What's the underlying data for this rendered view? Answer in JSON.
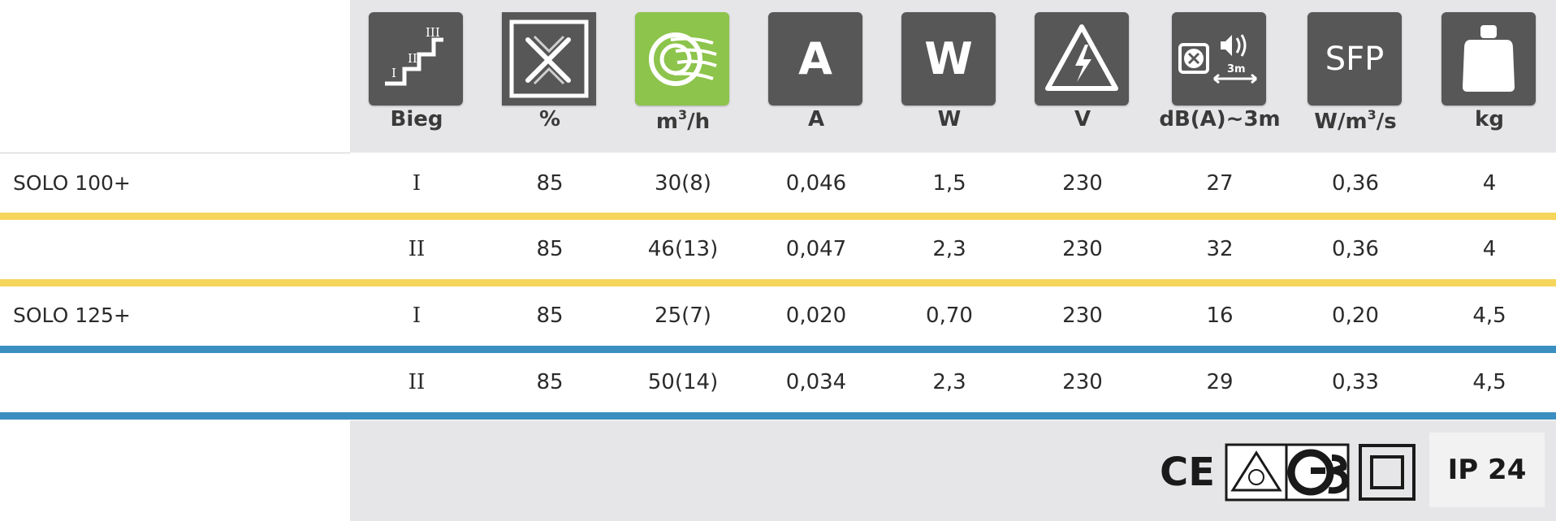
{
  "header": {
    "columns": [
      {
        "id": "speed",
        "label": "Bieg",
        "icon": "speed-steps-icon",
        "icon_text": [
          "I",
          "II",
          "III"
        ]
      },
      {
        "id": "efficiency",
        "label": "%",
        "icon": "heat-recovery-icon"
      },
      {
        "id": "airflow",
        "label": "m",
        "label_sup": "3",
        "label_suffix": "/h",
        "icon": "airflow-icon"
      },
      {
        "id": "current",
        "label": "A",
        "icon": "current-icon",
        "icon_text": "A"
      },
      {
        "id": "power",
        "label": "W",
        "icon": "power-icon",
        "icon_text": "W"
      },
      {
        "id": "voltage",
        "label": "V",
        "icon": "high-voltage-icon"
      },
      {
        "id": "noise",
        "label": "dB(A)~3m",
        "icon": "noise-icon",
        "icon_text": "3m"
      },
      {
        "id": "sfp",
        "label": "W/m",
        "label_sup": "3",
        "label_suffix": "/s",
        "icon": "sfp-icon",
        "icon_text": "SFP"
      },
      {
        "id": "weight",
        "label": "kg",
        "icon": "weight-icon"
      }
    ]
  },
  "rows": [
    {
      "model": "SOLO 100+",
      "speed": "I",
      "values": [
        "85",
        "30(8)",
        "0,046",
        "1,5",
        "230",
        "27",
        "0,36",
        "4"
      ]
    },
    {
      "model": "",
      "speed": "II",
      "values": [
        "85",
        "46(13)",
        "0,047",
        "2,3",
        "230",
        "32",
        "0,36",
        "4"
      ]
    },
    {
      "model": "SOLO 125+",
      "speed": "I",
      "values": [
        "85",
        "25(7)",
        "0,020",
        "0,70",
        "230",
        "16",
        "0,20",
        "4,5"
      ]
    },
    {
      "model": "",
      "speed": "II",
      "values": [
        "85",
        "50(14)",
        "0,034",
        "2,3",
        "230",
        "29",
        "0,33",
        "4,5"
      ]
    }
  ],
  "colors": {
    "header_bg": "#e6e6e8",
    "icon_bg": "#575757",
    "airflow_icon_bg": "#8dc44c",
    "solo100_divider": "#f6d55c",
    "solo125_divider": "#3b8fc0"
  },
  "certifications": {
    "ce": "CE",
    "ip_rating": "IP 24",
    "marks": [
      "tested-safety-mark-icon",
      "gs-mark-icon",
      "double-insulation-icon"
    ]
  }
}
